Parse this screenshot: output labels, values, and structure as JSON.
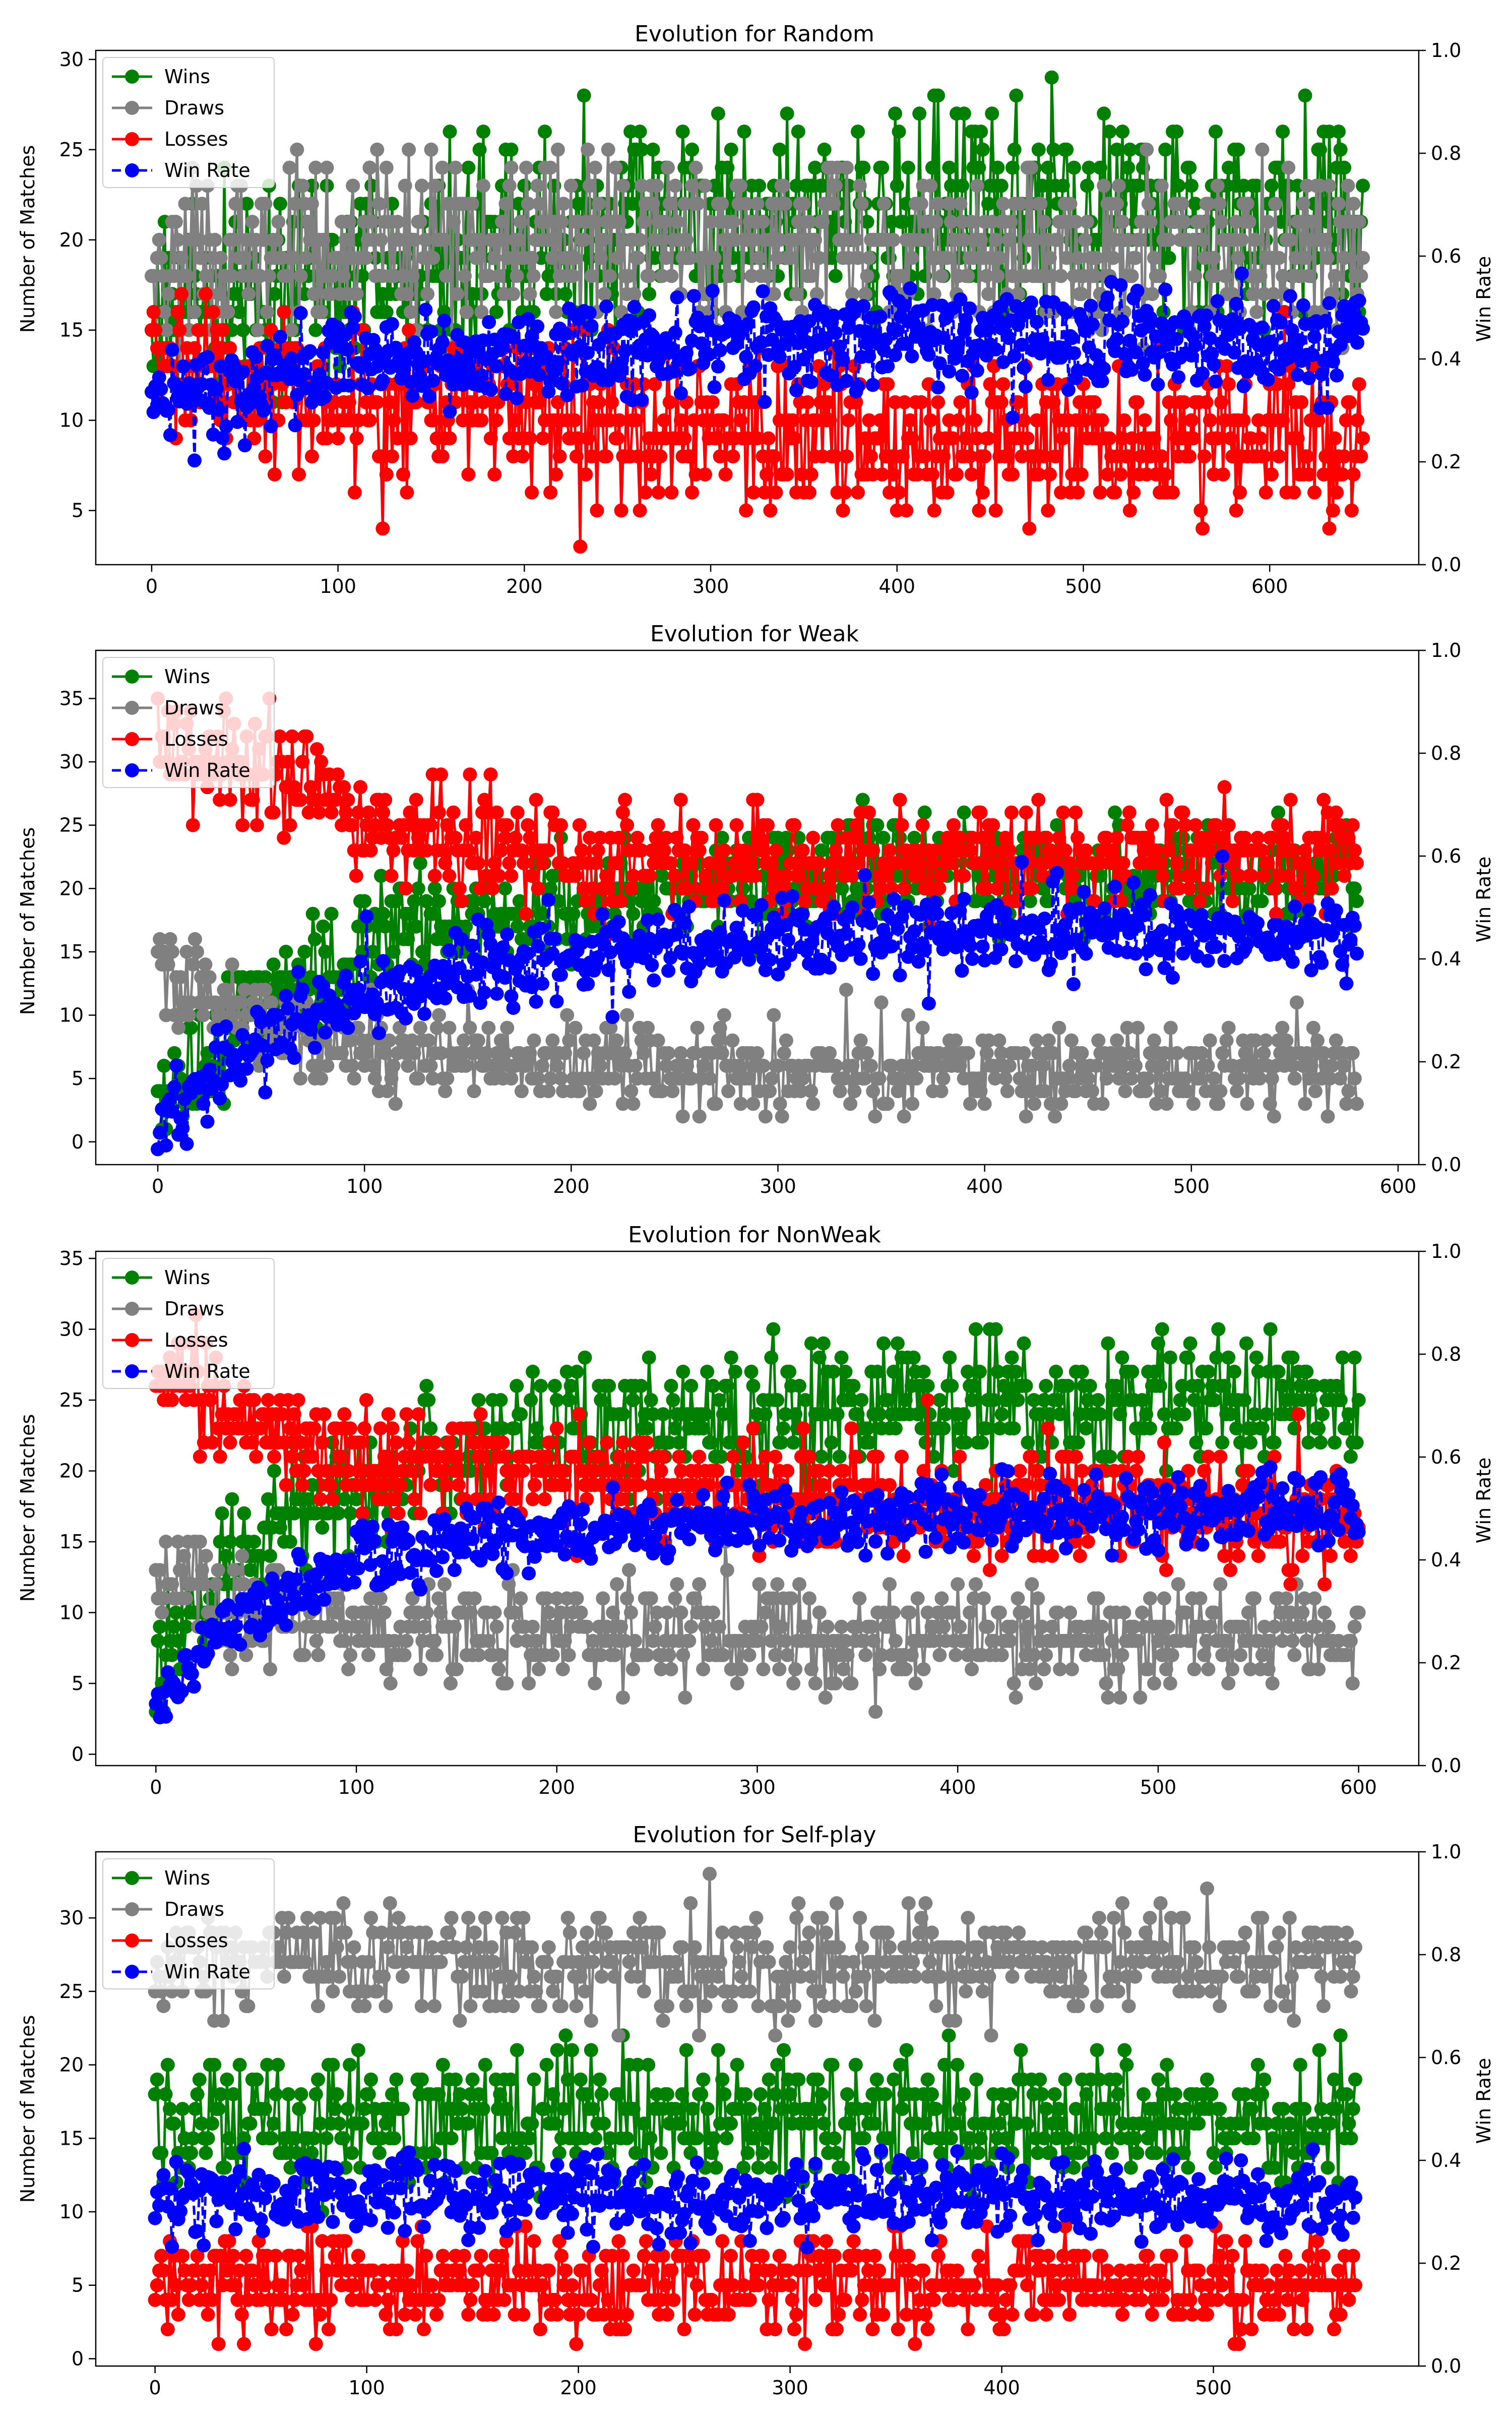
{
  "chart_data": [
    {
      "type": "line",
      "title": "Evolution for Random",
      "ylabel": "Number of Matches",
      "y2label": "Win Rate",
      "xlim": [
        -30,
        680
      ],
      "ylim": [
        2.0,
        30.5
      ],
      "y2lim": [
        0.0,
        1.0
      ],
      "x_ticks": [
        0,
        100,
        200,
        300,
        400,
        500,
        600
      ],
      "y_ticks": [
        5,
        10,
        15,
        20,
        25,
        30
      ],
      "y2_ticks": [
        0.0,
        0.2,
        0.4,
        0.6,
        0.8,
        1.0
      ],
      "x_max": 650,
      "legend_position": "upper-left",
      "series": [
        {
          "name": "Wins",
          "color": "#008000",
          "axis": "left",
          "style": "solid",
          "profile": [
            [
              0,
              16
            ],
            [
              100,
              18
            ],
            [
              200,
              20
            ],
            [
              300,
              21
            ],
            [
              400,
              21.5
            ],
            [
              500,
              21.5
            ],
            [
              650,
              21.5
            ]
          ],
          "noise": 3.2,
          "min": 7,
          "max": 29
        },
        {
          "name": "Draws",
          "color": "#808080",
          "axis": "left",
          "style": "solid",
          "profile": [
            [
              0,
              18
            ],
            [
              100,
              20
            ],
            [
              200,
              20
            ],
            [
              300,
              20
            ],
            [
              400,
              19.5
            ],
            [
              500,
              19.5
            ],
            [
              650,
              19.5
            ]
          ],
          "noise": 2.6,
          "min": 11,
          "max": 25
        },
        {
          "name": "Losses",
          "color": "#ff0000",
          "axis": "left",
          "style": "solid",
          "profile": [
            [
              0,
              13
            ],
            [
              100,
              11
            ],
            [
              200,
              10.5
            ],
            [
              300,
              9.5
            ],
            [
              400,
              9
            ],
            [
              500,
              9
            ],
            [
              650,
              9
            ]
          ],
          "noise": 2.4,
          "min": 3,
          "max": 21
        },
        {
          "name": "Win Rate",
          "color": "#0000ff",
          "axis": "right",
          "style": "dashed",
          "profile": [
            [
              0,
              0.32
            ],
            [
              100,
              0.38
            ],
            [
              200,
              0.41
            ],
            [
              300,
              0.43
            ],
            [
              400,
              0.44
            ],
            [
              500,
              0.44
            ],
            [
              650,
              0.44
            ]
          ],
          "noise": 0.055,
          "min": 0.18,
          "max": 0.58
        }
      ]
    },
    {
      "type": "line",
      "title": "Evolution for Weak",
      "ylabel": "Number of Matches",
      "y2label": "Win Rate",
      "xlim": [
        -30,
        610
      ],
      "ylim": [
        -1.8,
        38.8
      ],
      "y2lim": [
        0.0,
        1.0
      ],
      "x_ticks": [
        0,
        100,
        200,
        300,
        400,
        500,
        600
      ],
      "y_ticks": [
        0,
        5,
        10,
        15,
        20,
        25,
        30,
        35
      ],
      "y2_ticks": [
        0.0,
        0.2,
        0.4,
        0.6,
        0.8,
        1.0
      ],
      "x_max": 580,
      "legend_position": "upper-left",
      "series": [
        {
          "name": "Wins",
          "color": "#008000",
          "axis": "left",
          "style": "solid",
          "profile": [
            [
              0,
              3
            ],
            [
              30,
              8
            ],
            [
              80,
              14
            ],
            [
              150,
              18
            ],
            [
              250,
              20
            ],
            [
              350,
              21
            ],
            [
              580,
              21
            ]
          ],
          "noise": 2.6,
          "min": 1,
          "max": 31
        },
        {
          "name": "Draws",
          "color": "#808080",
          "axis": "left",
          "style": "solid",
          "profile": [
            [
              0,
              14
            ],
            [
              40,
              10
            ],
            [
              100,
              7
            ],
            [
              200,
              6
            ],
            [
              580,
              5.5
            ]
          ],
          "noise": 2.0,
          "min": 0,
          "max": 16
        },
        {
          "name": "Losses",
          "color": "#ff0000",
          "axis": "left",
          "style": "solid",
          "profile": [
            [
              0,
              32
            ],
            [
              50,
              29
            ],
            [
              100,
              25
            ],
            [
              200,
              22
            ],
            [
              300,
              22
            ],
            [
              580,
              23
            ]
          ],
          "noise": 2.4,
          "min": 16,
          "max": 37
        },
        {
          "name": "Win Rate",
          "color": "#0000ff",
          "axis": "right",
          "style": "dashed",
          "profile": [
            [
              0,
              0.05
            ],
            [
              30,
              0.2
            ],
            [
              80,
              0.3
            ],
            [
              150,
              0.38
            ],
            [
              300,
              0.45
            ],
            [
              580,
              0.45
            ]
          ],
          "noise": 0.045,
          "min": 0.03,
          "max": 0.6
        }
      ]
    },
    {
      "type": "line",
      "title": "Evolution for NonWeak",
      "ylabel": "Number of Matches",
      "y2label": "Win Rate",
      "xlim": [
        -30,
        630
      ],
      "ylim": [
        -0.8,
        35.5
      ],
      "y2lim": [
        0.0,
        1.0
      ],
      "x_ticks": [
        0,
        100,
        200,
        300,
        400,
        500,
        600
      ],
      "y_ticks": [
        0,
        5,
        10,
        15,
        20,
        25,
        30,
        35
      ],
      "y2_ticks": [
        0.0,
        0.2,
        0.4,
        0.6,
        0.8,
        1.0
      ],
      "x_max": 600,
      "legend_position": "upper-left",
      "series": [
        {
          "name": "Wins",
          "color": "#008000",
          "axis": "left",
          "style": "solid",
          "profile": [
            [
              0,
              6
            ],
            [
              30,
              12
            ],
            [
              80,
              18
            ],
            [
              150,
              21
            ],
            [
              300,
              24
            ],
            [
              600,
              25
            ]
          ],
          "noise": 2.8,
          "min": 3,
          "max": 30
        },
        {
          "name": "Draws",
          "color": "#808080",
          "axis": "left",
          "style": "solid",
          "profile": [
            [
              0,
              12
            ],
            [
              50,
              10
            ],
            [
              150,
              8.5
            ],
            [
              600,
              8
            ]
          ],
          "noise": 2.2,
          "min": 1,
          "max": 16
        },
        {
          "name": "Losses",
          "color": "#ff0000",
          "axis": "left",
          "style": "solid",
          "profile": [
            [
              0,
              27
            ],
            [
              40,
              24
            ],
            [
              100,
              21
            ],
            [
              200,
              20
            ],
            [
              300,
              18
            ],
            [
              600,
              17
            ]
          ],
          "noise": 2.3,
          "min": 10,
          "max": 34
        },
        {
          "name": "Win Rate",
          "color": "#0000ff",
          "axis": "right",
          "style": "dashed",
          "profile": [
            [
              0,
              0.12
            ],
            [
              30,
              0.25
            ],
            [
              100,
              0.4
            ],
            [
              200,
              0.45
            ],
            [
              300,
              0.48
            ],
            [
              600,
              0.5
            ]
          ],
          "noise": 0.04,
          "min": 0.08,
          "max": 0.58
        }
      ]
    },
    {
      "type": "line",
      "title": "Evolution for Self-play",
      "ylabel": "Number of Matches",
      "y2label": "Win Rate",
      "xlim": [
        -28,
        597
      ],
      "ylim": [
        -0.5,
        34.5
      ],
      "y2lim": [
        0.0,
        1.0
      ],
      "x_ticks": [
        0,
        100,
        200,
        300,
        400,
        500
      ],
      "y_ticks": [
        0,
        5,
        10,
        15,
        20,
        25,
        30
      ],
      "y2_ticks": [
        0.0,
        0.2,
        0.4,
        0.6,
        0.8,
        1.0
      ],
      "x_max": 567,
      "legend_position": "upper-left",
      "series": [
        {
          "name": "Wins",
          "color": "#008000",
          "axis": "left",
          "style": "solid",
          "profile": [
            [
              0,
              16
            ],
            [
              567,
              16
            ]
          ],
          "noise": 2.6,
          "min": 10,
          "max": 23
        },
        {
          "name": "Draws",
          "color": "#808080",
          "axis": "left",
          "style": "solid",
          "profile": [
            [
              0,
              27
            ],
            [
              567,
              27
            ]
          ],
          "noise": 2.2,
          "min": 19,
          "max": 33
        },
        {
          "name": "Losses",
          "color": "#ff0000",
          "axis": "left",
          "style": "solid",
          "profile": [
            [
              0,
              5
            ],
            [
              567,
              5
            ]
          ],
          "noise": 1.9,
          "min": 0,
          "max": 9
        },
        {
          "name": "Win Rate",
          "color": "#0000ff",
          "axis": "right",
          "style": "dashed",
          "profile": [
            [
              0,
              0.33
            ],
            [
              567,
              0.33
            ]
          ],
          "noise": 0.045,
          "min": 0.18,
          "max": 0.48
        }
      ]
    }
  ]
}
